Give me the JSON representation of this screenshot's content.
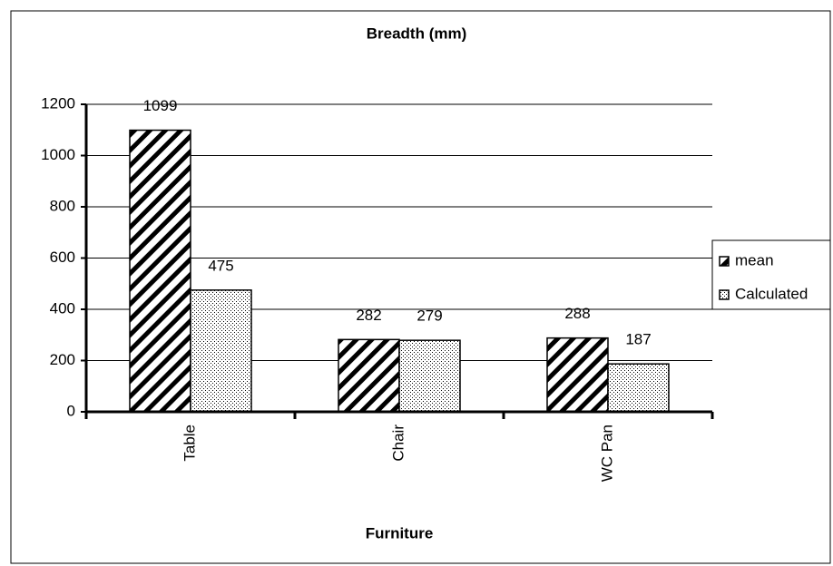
{
  "chart_data": {
    "type": "bar",
    "title": "Breadth (mm)",
    "x_label": "Furniture",
    "categories": [
      "Table",
      "Chair",
      "WC Pan"
    ],
    "series": [
      {
        "name": "mean",
        "pattern": "hatch",
        "color": "#000000",
        "values": [
          1099,
          282,
          288
        ]
      },
      {
        "name": "Calculated",
        "pattern": "dots",
        "color": "#000000",
        "values": [
          475,
          279,
          187
        ]
      }
    ],
    "ylim": [
      0,
      1200
    ],
    "yticks": [
      0,
      200,
      400,
      600,
      800,
      1000,
      1200
    ],
    "grid": true,
    "legend": "right"
  }
}
